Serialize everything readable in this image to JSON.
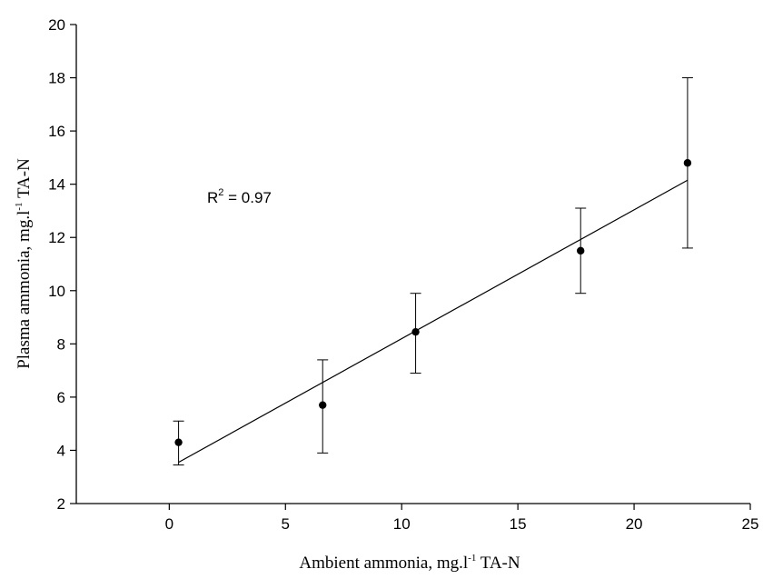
{
  "chart_data": {
    "type": "scatter",
    "title": "",
    "xlabel": {
      "main": "Ambient ammonia, mg.l",
      "sup": "-1",
      "tail": " TA-N"
    },
    "ylabel": {
      "main": "Plasma ammonia, mg.l",
      "sup": "-1",
      "tail": " TA-N"
    },
    "xlim": [
      -4,
      25
    ],
    "ylim": [
      2,
      20
    ],
    "xticks": [
      0,
      5,
      10,
      15,
      20,
      25
    ],
    "yticks": [
      2,
      4,
      6,
      8,
      10,
      12,
      14,
      16,
      18,
      20
    ],
    "grid": false,
    "points": [
      {
        "x": 0.4,
        "y": 4.3,
        "err_low": 3.45,
        "err_high": 5.1
      },
      {
        "x": 6.6,
        "y": 5.7,
        "err_low": 3.9,
        "err_high": 7.4
      },
      {
        "x": 10.6,
        "y": 8.45,
        "err_low": 6.9,
        "err_high": 9.9
      },
      {
        "x": 17.7,
        "y": 11.5,
        "err_low": 9.9,
        "err_high": 13.1
      },
      {
        "x": 22.3,
        "y": 14.8,
        "err_low": 11.6,
        "err_high": 18.0
      }
    ],
    "regression": {
      "x1": 0.4,
      "y1": 3.55,
      "x2": 22.3,
      "y2": 14.15
    },
    "annotation": {
      "main": "R",
      "sup": "2",
      "tail": " = 0.97"
    }
  }
}
